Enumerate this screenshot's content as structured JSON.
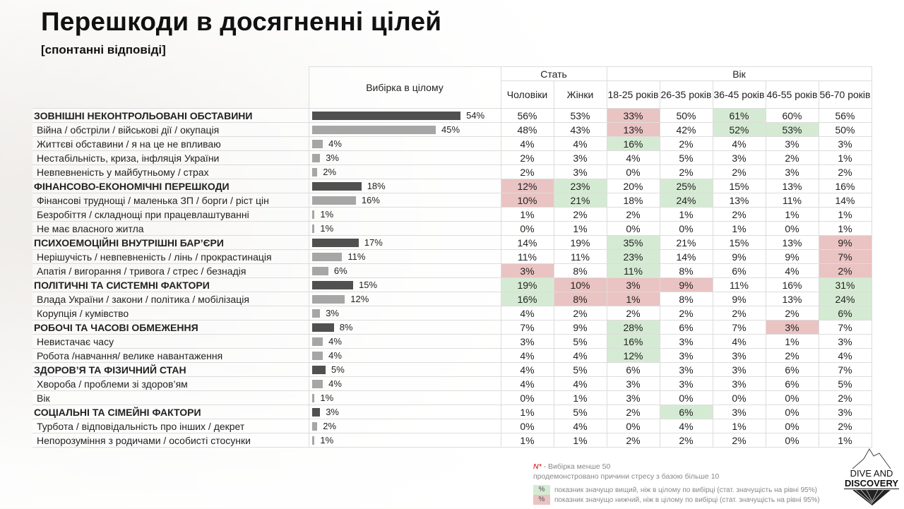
{
  "title": "Перешкоди в досягненні цілей",
  "subtitle": "[спонтанні відповіді]",
  "header": {
    "total": "Вибірка в цілому",
    "gender": "Стать",
    "age": "Вік",
    "columns": [
      "Чоловіки",
      "Жінки",
      "18-25 років",
      "26-35 років",
      "36-45 років",
      "46-55 років",
      "56-70 років"
    ]
  },
  "colors": {
    "category_bar": "#505050",
    "item_bar": "#a6a6a6",
    "higher": "#d5ead3",
    "lower": "#eac3c3"
  },
  "rows": [
    {
      "label": "ЗОВНІШНІ НЕКОНТРОЛЬОВАНІ ОБСТАВИНИ",
      "category": true,
      "total": 54,
      "values": [
        "56%",
        "53%",
        "33%",
        "50%",
        "61%",
        "60%",
        "56%"
      ],
      "sig": [
        "",
        "",
        "r",
        "",
        "g",
        "",
        ""
      ]
    },
    {
      "label": "Війна / обстріли / військові дії / окупація",
      "total": 45,
      "values": [
        "48%",
        "43%",
        "13%",
        "42%",
        "52%",
        "53%",
        "50%"
      ],
      "sig": [
        "",
        "",
        "r",
        "",
        "g",
        "g",
        ""
      ]
    },
    {
      "label": "Життєві обставини / я на це не впливаю",
      "total": 4,
      "values": [
        "4%",
        "4%",
        "16%",
        "2%",
        "4%",
        "3%",
        "3%"
      ],
      "sig": [
        "",
        "",
        "g",
        "",
        "",
        "",
        ""
      ]
    },
    {
      "label": "Нестабільність, криза, інфляція України",
      "total": 3,
      "values": [
        "2%",
        "3%",
        "4%",
        "5%",
        "3%",
        "2%",
        "1%"
      ],
      "sig": [
        "",
        "",
        "",
        "",
        "",
        "",
        ""
      ]
    },
    {
      "label": "Невпевненість у майбутньому / страх",
      "total": 2,
      "values": [
        "2%",
        "3%",
        "0%",
        "2%",
        "2%",
        "3%",
        "2%"
      ],
      "sig": [
        "",
        "",
        "",
        "",
        "",
        "",
        ""
      ]
    },
    {
      "label": "ФІНАНСОВО-ЕКОНОМІЧНІ ПЕРЕШКОДИ",
      "category": true,
      "total": 18,
      "values": [
        "12%",
        "23%",
        "20%",
        "25%",
        "15%",
        "13%",
        "16%"
      ],
      "sig": [
        "r",
        "g",
        "",
        "g",
        "",
        "",
        ""
      ]
    },
    {
      "label": "Фінансові труднощі / маленька ЗП / борги / ріст цін",
      "total": 16,
      "values": [
        "10%",
        "21%",
        "18%",
        "24%",
        "13%",
        "11%",
        "14%"
      ],
      "sig": [
        "r",
        "g",
        "",
        "g",
        "",
        "",
        ""
      ]
    },
    {
      "label": "Безробіття / складнощі при працевлаштуванні",
      "total": 1,
      "values": [
        "1%",
        "2%",
        "2%",
        "1%",
        "2%",
        "1%",
        "1%"
      ],
      "sig": [
        "",
        "",
        "",
        "",
        "",
        "",
        ""
      ]
    },
    {
      "label": "Не має власного житла",
      "total": 1,
      "values": [
        "0%",
        "1%",
        "0%",
        "0%",
        "1%",
        "0%",
        "1%"
      ],
      "sig": [
        "",
        "",
        "",
        "",
        "",
        "",
        ""
      ]
    },
    {
      "label": "ПСИХОЕМОЦІЙНІ ВНУТРІШНІ БАР’ЄРИ",
      "category": true,
      "total": 17,
      "values": [
        "14%",
        "19%",
        "35%",
        "21%",
        "15%",
        "13%",
        "9%"
      ],
      "sig": [
        "",
        "",
        "g",
        "",
        "",
        "",
        "r"
      ]
    },
    {
      "label": "Нерішучість / невпевненість / лінь / прокрастинація",
      "total": 11,
      "values": [
        "11%",
        "11%",
        "23%",
        "14%",
        "9%",
        "9%",
        "7%"
      ],
      "sig": [
        "",
        "",
        "g",
        "",
        "",
        "",
        "r"
      ]
    },
    {
      "label": "Апатія / вигорання / тривога / стрес / безнадія",
      "total": 6,
      "values": [
        "3%",
        "8%",
        "11%",
        "8%",
        "6%",
        "4%",
        "2%"
      ],
      "sig": [
        "r",
        "",
        "g",
        "",
        "",
        "",
        "r"
      ]
    },
    {
      "label": "ПОЛІТИЧНІ ТА СИСТЕМНІ ФАКТОРИ",
      "category": true,
      "total": 15,
      "values": [
        "19%",
        "10%",
        "3%",
        "9%",
        "11%",
        "16%",
        "31%"
      ],
      "sig": [
        "g",
        "r",
        "r",
        "r",
        "",
        "",
        "g"
      ]
    },
    {
      "label": "Влада України / закони / політика / мобілізація",
      "total": 12,
      "values": [
        "16%",
        "8%",
        "1%",
        "8%",
        "9%",
        "13%",
        "24%"
      ],
      "sig": [
        "g",
        "r",
        "r",
        "",
        "",
        "",
        "g"
      ]
    },
    {
      "label": "Корупція / кумівство",
      "total": 3,
      "values": [
        "4%",
        "2%",
        "2%",
        "2%",
        "2%",
        "2%",
        "6%"
      ],
      "sig": [
        "",
        "",
        "",
        "",
        "",
        "",
        "g"
      ]
    },
    {
      "label": "РОБОЧІ ТА ЧАСОВІ ОБМЕЖЕННЯ",
      "category": true,
      "total": 8,
      "values": [
        "7%",
        "9%",
        "28%",
        "6%",
        "7%",
        "3%",
        "7%"
      ],
      "sig": [
        "",
        "",
        "g",
        "",
        "",
        "r",
        ""
      ]
    },
    {
      "label": "Невистачає часу",
      "total": 4,
      "values": [
        "3%",
        "5%",
        "16%",
        "3%",
        "4%",
        "1%",
        "3%"
      ],
      "sig": [
        "",
        "",
        "g",
        "",
        "",
        "",
        ""
      ]
    },
    {
      "label": "Робота /навчання/ велике навантаження",
      "total": 4,
      "values": [
        "4%",
        "4%",
        "12%",
        "3%",
        "3%",
        "2%",
        "4%"
      ],
      "sig": [
        "",
        "",
        "g",
        "",
        "",
        "",
        ""
      ]
    },
    {
      "label": "ЗДОРОВ’Я ТА ФІЗИЧНИЙ СТАН",
      "category": true,
      "total": 5,
      "values": [
        "4%",
        "5%",
        "6%",
        "3%",
        "3%",
        "6%",
        "7%"
      ],
      "sig": [
        "",
        "",
        "",
        "",
        "",
        "",
        ""
      ]
    },
    {
      "label": "Хвороба / проблеми зі здоров’ям",
      "total": 4,
      "values": [
        "4%",
        "4%",
        "3%",
        "3%",
        "3%",
        "6%",
        "5%"
      ],
      "sig": [
        "",
        "",
        "",
        "",
        "",
        "",
        ""
      ]
    },
    {
      "label": "Вік",
      "total": 1,
      "values": [
        "0%",
        "1%",
        "3%",
        "0%",
        "0%",
        "0%",
        "2%"
      ],
      "sig": [
        "",
        "",
        "",
        "",
        "",
        "",
        ""
      ]
    },
    {
      "label": "СОЦІАЛЬНІ ТА СІМЕЙНІ ФАКТОРИ",
      "category": true,
      "total": 3,
      "values": [
        "1%",
        "5%",
        "2%",
        "6%",
        "3%",
        "0%",
        "3%"
      ],
      "sig": [
        "",
        "",
        "",
        "g",
        "",
        "",
        ""
      ]
    },
    {
      "label": "Турбота / відповідальність про інших / декрет",
      "total": 2,
      "values": [
        "0%",
        "4%",
        "0%",
        "4%",
        "1%",
        "0%",
        "2%"
      ],
      "sig": [
        "",
        "",
        "",
        "",
        "",
        "",
        ""
      ]
    },
    {
      "label": "Непорозуміння з родичами / особисті стосунки",
      "total": 1,
      "values": [
        "1%",
        "1%",
        "2%",
        "2%",
        "2%",
        "0%",
        "1%"
      ],
      "sig": [
        "",
        "",
        "",
        "",
        "",
        "",
        ""
      ]
    }
  ],
  "footer": {
    "n_mark": "N*",
    "n_note": " - Вибірка менше 50",
    "base_note": "продемонстровано причини стресу з базою більше 10",
    "swatch": "%",
    "higher_note": "показник значущо вищий, ніж в цілому по вибірці (стат. значущість на рівні 95%)",
    "lower_note": "показник значущо нижчий, ніж в цілому по вибірці (стат. значущість на рівні 95%)"
  },
  "logo": {
    "line1": "DIVE AND",
    "line2": "DISCOVERY"
  }
}
